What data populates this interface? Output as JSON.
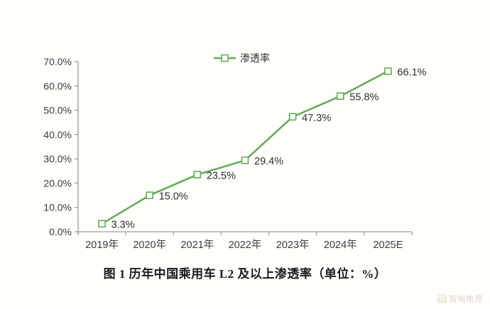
{
  "chart_data": {
    "type": "line",
    "title": "图 1 历年中国乘用车 L2 及以上渗透率（单位：%）",
    "xlabel": "",
    "ylabel": "",
    "categories": [
      "2019年",
      "2020年",
      "2021年",
      "2022年",
      "2023年",
      "2024年",
      "2025E"
    ],
    "series": [
      {
        "name": "渗透率",
        "values": [
          3.3,
          15.0,
          23.5,
          29.4,
          47.3,
          55.8,
          66.1
        ]
      }
    ],
    "data_labels": [
      "3.3%",
      "15.0%",
      "23.5%",
      "29.4%",
      "47.3%",
      "55.8%",
      "66.1%"
    ],
    "ylim": [
      0,
      70
    ],
    "ytick_step": 10,
    "ytick_labels": [
      "0.0%",
      "10.0%",
      "20.0%",
      "30.0%",
      "40.0%",
      "50.0%",
      "60.0%",
      "70.0%"
    ],
    "grid": false,
    "legend": [
      "渗透率"
    ],
    "legend_position": "top-center",
    "marker": "open-square",
    "colors": {
      "line": "#63ac55",
      "marker_fill": "#ffffff",
      "axis": "#9b9b9b",
      "tick_label": "#3c3c3c",
      "data_label": "#2e2e2e"
    }
  },
  "caption": "图 1 历年中国乘用车 L2 及以上渗透率（单位：%）",
  "watermark": {
    "text": "智电电哥",
    "icon_glyph": "智"
  }
}
